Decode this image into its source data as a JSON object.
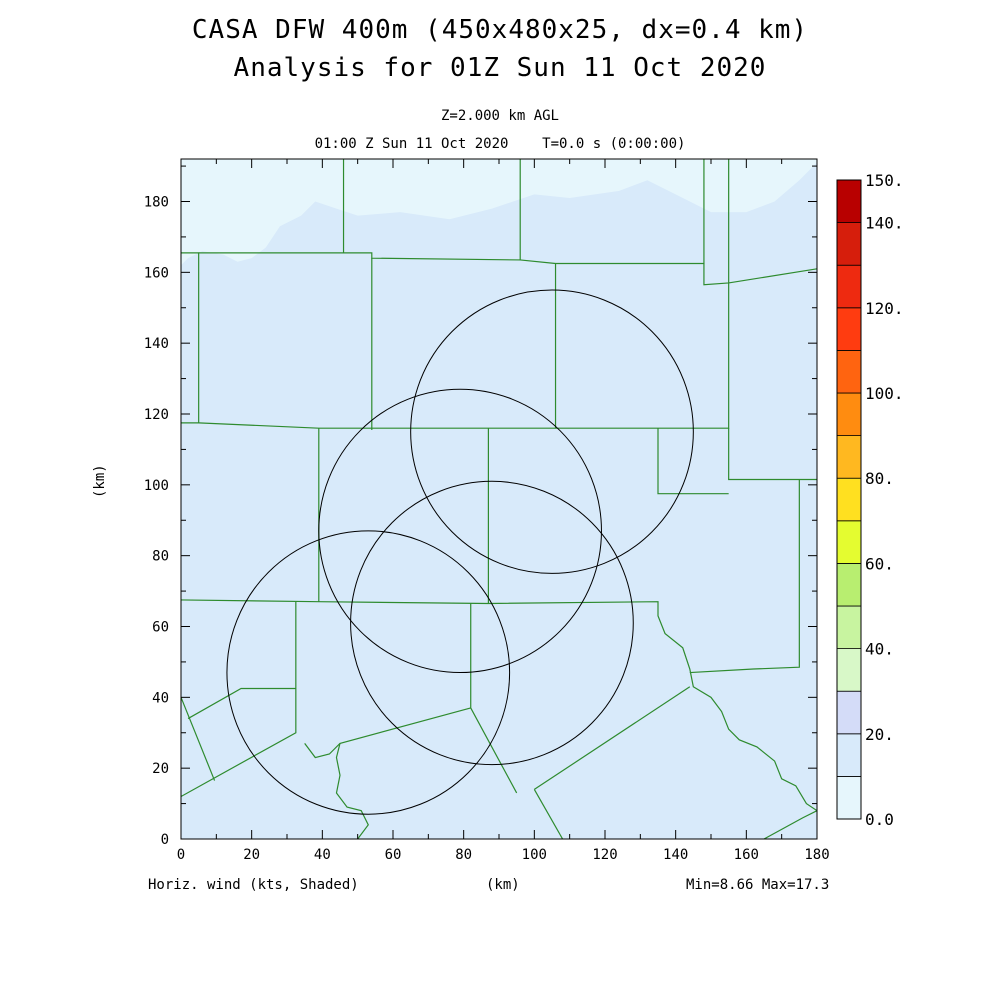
{
  "header": {
    "title_line1": "CASA DFW 400m (450x480x25, dx=0.4 km)",
    "title_line2": "Analysis for 01Z Sun 11 Oct 2020",
    "level": "Z=2.000 km AGL",
    "time": "01:00 Z Sun 11 Oct 2020    T=0.0 s (0:00:00)"
  },
  "axes": {
    "xlabel": "(km)",
    "ylabel": "(km)",
    "xticks": [
      0,
      20,
      40,
      60,
      80,
      100,
      120,
      140,
      160,
      180
    ],
    "yticks": [
      0,
      20,
      40,
      60,
      80,
      100,
      120,
      140,
      160,
      180
    ],
    "xlim": [
      0,
      180
    ],
    "ylim": [
      0,
      192
    ]
  },
  "footer": {
    "field": "Horiz. wind (kts, Shaded)",
    "stats": "Min=8.66 Max=17.3"
  },
  "colorbar": {
    "labels": [
      {
        "value": 0,
        "text": "0.0"
      },
      {
        "value": 20,
        "text": "20."
      },
      {
        "value": 40,
        "text": "40."
      },
      {
        "value": 60,
        "text": "60."
      },
      {
        "value": 80,
        "text": "80."
      },
      {
        "value": 100,
        "text": "100."
      },
      {
        "value": 120,
        "text": "120."
      },
      {
        "value": 140,
        "text": "140."
      },
      {
        "value": 150,
        "text": "150."
      }
    ],
    "bins": [
      {
        "from": 0,
        "to": 10,
        "color": "#e6f6fc"
      },
      {
        "from": 10,
        "to": 20,
        "color": "#d8eafa"
      },
      {
        "from": 20,
        "to": 30,
        "color": "#d4dcf8"
      },
      {
        "from": 30,
        "to": 40,
        "color": "#d8f8c8"
      },
      {
        "from": 40,
        "to": 50,
        "color": "#c8f4a0"
      },
      {
        "from": 50,
        "to": 60,
        "color": "#b8ee70"
      },
      {
        "from": 60,
        "to": 70,
        "color": "#e4fc30"
      },
      {
        "from": 70,
        "to": 80,
        "color": "#ffe020"
      },
      {
        "from": 80,
        "to": 90,
        "color": "#ffb820"
      },
      {
        "from": 90,
        "to": 100,
        "color": "#ff8c10"
      },
      {
        "from": 100,
        "to": 110,
        "color": "#ff6410"
      },
      {
        "from": 110,
        "to": 120,
        "color": "#ff3c10"
      },
      {
        "from": 120,
        "to": 130,
        "color": "#ee2a10"
      },
      {
        "from": 130,
        "to": 140,
        "color": "#d61e0c"
      },
      {
        "from": 140,
        "to": 150,
        "color": "#b80000"
      }
    ]
  },
  "map": {
    "background_color": "#d8eafa",
    "light_region_color": "#e6f6fc",
    "boundary_color": "#2e8b2e",
    "circle_color": "#000000",
    "light_region": [
      [
        0,
        192
      ],
      [
        180,
        192
      ],
      [
        180,
        191
      ],
      [
        175,
        186
      ],
      [
        168,
        180
      ],
      [
        160,
        177
      ],
      [
        150,
        177
      ],
      [
        140,
        182
      ],
      [
        132,
        186
      ],
      [
        124,
        183
      ],
      [
        110,
        181
      ],
      [
        100,
        182
      ],
      [
        88,
        178
      ],
      [
        76,
        175
      ],
      [
        62,
        177
      ],
      [
        50,
        176
      ],
      [
        44,
        178
      ],
      [
        38,
        180
      ],
      [
        34,
        176
      ],
      [
        28,
        173
      ],
      [
        24,
        167
      ],
      [
        20,
        164
      ],
      [
        16,
        163
      ],
      [
        12,
        165
      ],
      [
        6,
        166
      ],
      [
        2,
        164
      ],
      [
        0,
        162
      ]
    ],
    "county_lines": [
      [
        [
          0,
          165.5
        ],
        [
          5,
          165.5
        ],
        [
          5,
          117.5
        ],
        [
          0,
          117.5
        ]
      ],
      [
        [
          5,
          165.5
        ],
        [
          46,
          165.5
        ],
        [
          46,
          192
        ]
      ],
      [
        [
          46,
          165.5
        ],
        [
          54,
          165.5
        ],
        [
          54,
          164
        ],
        [
          96,
          163.5
        ],
        [
          96,
          192
        ]
      ],
      [
        [
          96,
          163.5
        ],
        [
          106,
          162.5
        ],
        [
          148,
          162.5
        ],
        [
          148,
          192
        ]
      ],
      [
        [
          148,
          162.5
        ],
        [
          148,
          156.5
        ],
        [
          155,
          157
        ],
        [
          180,
          161
        ]
      ],
      [
        [
          54,
          164
        ],
        [
          54,
          115.5
        ]
      ],
      [
        [
          106,
          162.5
        ],
        [
          106,
          116
        ]
      ],
      [
        [
          5,
          117.5
        ],
        [
          39,
          116
        ],
        [
          106,
          116
        ],
        [
          155,
          116
        ],
        [
          155,
          192
        ]
      ],
      [
        [
          155,
          116
        ],
        [
          155,
          101.5
        ],
        [
          180,
          101.5
        ]
      ],
      [
        [
          39,
          116
        ],
        [
          39,
          67
        ]
      ],
      [
        [
          87,
          116
        ],
        [
          87,
          66.5
        ]
      ],
      [
        [
          135,
          116
        ],
        [
          135,
          97.5
        ],
        [
          155,
          97.5
        ]
      ],
      [
        [
          0,
          67.5
        ],
        [
          39,
          67
        ],
        [
          87,
          66.5
        ],
        [
          135,
          67
        ],
        [
          135,
          63
        ],
        [
          137,
          58
        ],
        [
          142,
          54
        ],
        [
          144,
          48
        ],
        [
          145,
          43
        ],
        [
          150,
          40
        ],
        [
          153,
          36
        ],
        [
          155,
          31
        ],
        [
          158,
          28
        ],
        [
          163,
          26
        ],
        [
          168,
          22
        ],
        [
          170,
          17
        ],
        [
          174,
          15
        ],
        [
          177,
          10
        ],
        [
          180,
          8
        ]
      ],
      [
        [
          144,
          47
        ],
        [
          162,
          48
        ],
        [
          175,
          48.5
        ],
        [
          175,
          101.5
        ]
      ],
      [
        [
          144,
          43
        ],
        [
          100,
          14
        ]
      ],
      [
        [
          100,
          14
        ],
        [
          108,
          0
        ]
      ],
      [
        [
          32.5,
          67
        ],
        [
          32.5,
          30
        ],
        [
          0,
          12
        ]
      ],
      [
        [
          0,
          40
        ],
        [
          9.5,
          16.5
        ]
      ],
      [
        [
          2,
          34
        ],
        [
          17,
          42.5
        ],
        [
          32.5,
          42.5
        ]
      ],
      [
        [
          82,
          66.5
        ],
        [
          82,
          37
        ],
        [
          95,
          13
        ]
      ],
      [
        [
          82,
          37
        ],
        [
          45,
          27
        ],
        [
          42,
          24
        ],
        [
          38,
          23
        ],
        [
          35,
          27
        ]
      ],
      [
        [
          45,
          27
        ],
        [
          44,
          23
        ],
        [
          45,
          18
        ],
        [
          44,
          13
        ],
        [
          47,
          9
        ],
        [
          51,
          8
        ],
        [
          53,
          4
        ],
        [
          50,
          0
        ]
      ],
      [
        [
          165,
          0
        ],
        [
          176,
          6
        ],
        [
          180,
          8
        ]
      ]
    ],
    "radar_circles": [
      {
        "cx": 105,
        "cy": 115,
        "r": 40
      },
      {
        "cx": 79,
        "cy": 87,
        "r": 40
      },
      {
        "cx": 88,
        "cy": 61,
        "r": 40
      },
      {
        "cx": 53,
        "cy": 47,
        "r": 40
      }
    ]
  }
}
